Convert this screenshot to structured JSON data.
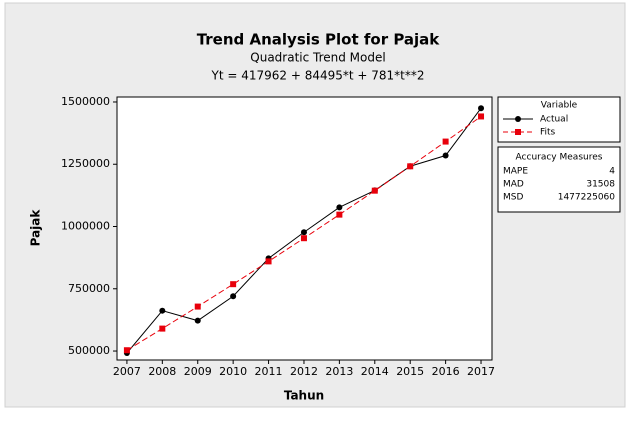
{
  "chart_data": {
    "type": "line",
    "title": "Trend Analysis Plot for Pajak",
    "subtitle": "Quadratic Trend Model",
    "equation": "Yt = 417962 + 84495*t + 781*t**2",
    "x_label": "Tahun",
    "y_label": "Pajak",
    "x": [
      2007,
      2008,
      2009,
      2010,
      2011,
      2012,
      2013,
      2014,
      2015,
      2016,
      2017
    ],
    "series": [
      {
        "name": "Actual",
        "color": "#000000",
        "marker": "circle",
        "dash": false,
        "values": [
          492000,
          662000,
          622000,
          720000,
          872000,
          977000,
          1077000,
          1145000,
          1242000,
          1285000,
          1475000
        ]
      },
      {
        "name": "Fits",
        "color": "#e8000b",
        "marker": "square",
        "dash": true,
        "values": [
          503238,
          590076,
          678476,
          768438,
          859962,
          953048,
          1047696,
          1143906,
          1241678,
          1341012,
          1441908
        ]
      }
    ],
    "xlim": [
      2006.72,
      2017.31
    ],
    "xticks": [
      2007,
      2008,
      2009,
      2010,
      2011,
      2012,
      2013,
      2014,
      2015,
      2016,
      2017
    ],
    "ylim": [
      464000,
      1520000
    ],
    "yticks": [
      500000,
      750000,
      1000000,
      1250000,
      1500000
    ],
    "legend_title": "Variable",
    "accuracy": {
      "title": "Accuracy Measures",
      "rows": [
        {
          "label": "MAPE",
          "value": 4
        },
        {
          "label": "MAD",
          "value": 31508
        },
        {
          "label": "MSD",
          "value": 1477225060
        }
      ]
    }
  }
}
